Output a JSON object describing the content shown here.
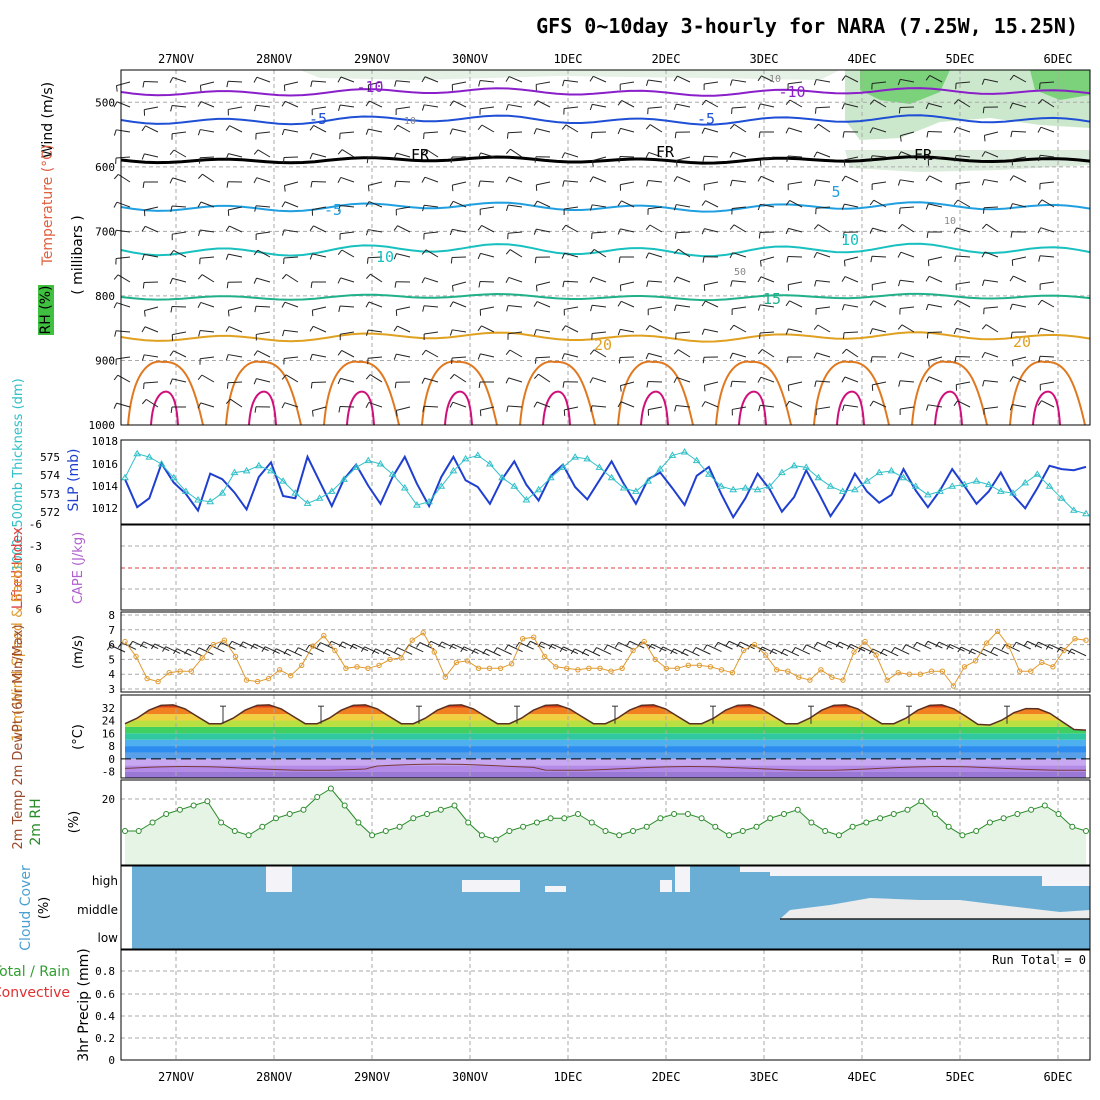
{
  "chart_data": {
    "type": "meteogram",
    "title": "GFS 0~10day 3-hourly for NARA (7.25W, 15.25N)",
    "dates": [
      "27NOV",
      "28NOV",
      "29NOV",
      "30NOV",
      "1DEC",
      "2DEC",
      "3DEC",
      "4DEC",
      "5DEC",
      "6DEC"
    ],
    "panels": {
      "upper_air": {
        "ylabels": [
          "Wind (m/s)",
          "Temperature (°C)",
          "RH (%)",
          "( millibars )"
        ],
        "yticks": [
          500,
          600,
          700,
          800,
          900,
          1000
        ],
        "isotherm_labels": [
          "-10",
          "-10",
          "-5",
          "-5",
          "FR",
          "FR",
          "FR",
          "-5",
          "5",
          "10",
          "10",
          "15",
          "20",
          "20",
          "10",
          "10",
          "50",
          "10"
        ],
        "colors": {
          "m10": "#8a1fc9",
          "m5": "#1f4fd4",
          "fr": "#000000",
          "p5": "#1f9fe0",
          "p10": "#18c0c0",
          "p15": "#20b08a",
          "p20": "#e0a020",
          "warm": "#e07820",
          "hot": "#d0107a",
          "rh": "#30c030"
        }
      },
      "thickness_slp": {
        "ylabel_left": "1000~500mb Thickness (dm)",
        "ylabel_right": "SLP (mb)",
        "left_ticks": [
          "575",
          "574",
          "573",
          "572"
        ],
        "right_ticks": [
          "1018",
          "1016",
          "1014",
          "1012"
        ],
        "slp_values": [
          1014.5,
          1012.0,
          1012.8,
          1015.9,
          1014.2,
          1013.2,
          1011.7,
          1015.0,
          1014.5,
          1013.3,
          1011.8,
          1014.7,
          1016.0,
          1013.0,
          1012.8,
          1016.5,
          1014.3,
          1012.1,
          1014.5,
          1015.8,
          1013.9,
          1012.3,
          1014.7,
          1016.5,
          1014.1,
          1012.1,
          1014.7,
          1016.5,
          1014.4,
          1013.8,
          1012.3,
          1014.5,
          1016.1,
          1014.0,
          1012.6,
          1014.8,
          1015.8,
          1013.8,
          1012.7,
          1014.4,
          1016.1,
          1014.1,
          1012.3,
          1014.5,
          1015.1,
          1013.7,
          1012.2,
          1014.8,
          1015.6,
          1013.2,
          1011.1,
          1012.8,
          1015.0,
          1013.6,
          1011.6,
          1012.9,
          1015.3,
          1013.3,
          1011.2,
          1012.8,
          1015.0,
          1013.4,
          1012.4,
          1013.1,
          1015.4,
          1013.5,
          1012.0,
          1013.5,
          1015.4,
          1013.9,
          1012.3,
          1013.4,
          1015.1,
          1013.1,
          1011.9,
          1013.7,
          1015.7,
          1015.4,
          1015.3,
          1015.6
        ],
        "thickness_values": [
          574.0,
          575.4,
          575.2,
          574.8,
          574.0,
          573.2,
          572.7,
          572.6,
          573.1,
          574.3,
          574.4,
          574.7,
          574.4,
          573.8,
          573.1,
          572.5,
          572.8,
          573.2,
          573.9,
          574.6,
          575.0,
          574.8,
          574.2,
          573.4,
          572.4,
          572.6,
          573.5,
          574.4,
          575.1,
          575.3,
          574.8,
          574.0,
          573.5,
          572.7,
          573.3,
          574.0,
          574.6,
          575.2,
          575.1,
          574.6,
          574.0,
          573.4,
          573.2,
          573.8,
          574.5,
          575.3,
          575.5,
          575.0,
          574.2,
          573.5,
          573.3,
          573.4,
          573.3,
          573.5,
          574.3,
          574.7,
          574.6,
          574.0,
          573.5,
          573.2,
          573.3,
          573.8,
          574.3,
          574.4,
          574.0,
          573.5,
          573.0,
          573.2,
          573.5,
          573.6,
          573.8,
          573.6,
          573.2,
          573.1,
          573.7,
          574.2,
          573.5,
          572.8,
          572.1,
          571.9
        ]
      },
      "stability": {
        "ylabel_left": "Lifted Index",
        "ylabel_right": "CAPE (J/kg)",
        "yticks": [
          "-6",
          "-3",
          "0",
          "3",
          "6"
        ]
      },
      "wind10m": {
        "ylabel": "10m Wind Speed & Barbs",
        "unit": "(m/s)",
        "yticks": [
          "8",
          "7",
          "6",
          "5",
          "4",
          "3"
        ],
        "values": [
          6.2,
          5.2,
          3.7,
          3.5,
          4.1,
          4.2,
          4.2,
          5.1,
          6.0,
          6.3,
          5.2,
          3.6,
          3.5,
          3.7,
          4.3,
          3.9,
          4.6,
          5.9,
          6.6,
          5.6,
          4.4,
          4.5,
          4.4,
          4.6,
          5.0,
          5.1,
          6.3,
          6.8,
          5.5,
          3.8,
          4.8,
          4.9,
          4.4,
          4.4,
          4.4,
          4.7,
          6.4,
          6.5,
          5.2,
          4.5,
          4.4,
          4.3,
          4.4,
          4.4,
          4.2,
          4.4,
          5.6,
          6.2,
          5.0,
          4.4,
          4.4,
          4.6,
          4.6,
          4.5,
          4.3,
          4.1,
          5.6,
          6.0,
          5.3,
          4.3,
          4.2,
          3.8,
          3.6,
          4.3,
          3.8,
          3.6,
          5.5,
          6.2,
          5.3,
          3.6,
          4.1,
          4.0,
          4.0,
          4.2,
          4.2,
          3.2,
          4.5,
          4.9,
          6.1,
          6.9,
          5.9,
          4.2,
          4.2,
          4.8,
          4.5,
          5.6,
          6.4,
          6.3
        ]
      },
      "temp2m": {
        "ylabel": "2m Temp 2m DewPt (6hr Min/Max)",
        "unit": "(°C)",
        "yticks": [
          "32",
          "24",
          "16",
          "8",
          "0",
          "-8"
        ]
      },
      "rh2m": {
        "ylabel": "2m RH",
        "unit": "(%)",
        "yticks": [
          "20"
        ],
        "values": [
          13,
          13,
          15,
          17,
          18,
          19,
          20,
          15,
          13,
          12,
          14,
          16,
          17,
          18,
          21,
          23,
          19,
          15,
          12,
          13,
          14,
          16,
          17,
          18,
          19,
          15,
          12,
          11,
          13,
          14,
          15,
          16,
          16,
          17,
          15,
          13,
          12,
          13,
          14,
          16,
          17,
          17,
          16,
          14,
          12,
          13,
          14,
          16,
          17,
          18,
          15,
          13,
          12,
          14,
          15,
          16,
          17,
          18,
          20,
          17,
          14,
          12,
          13,
          15,
          16,
          17,
          18,
          19,
          17,
          14,
          13
        ]
      },
      "cloud": {
        "ylabel": "Cloud Cover",
        "unit": "(%)",
        "levels": [
          "high",
          "middle",
          "low"
        ]
      },
      "precip": {
        "ylabel_left": "Total / Rain",
        "ylabel_left2": "Convective",
        "ylabel": "3hr Precip (mm)",
        "yticks": [
          "0.8",
          "0.6",
          "0.4",
          "0.2",
          "0"
        ],
        "run_total": "Run Total = 0"
      }
    }
  }
}
